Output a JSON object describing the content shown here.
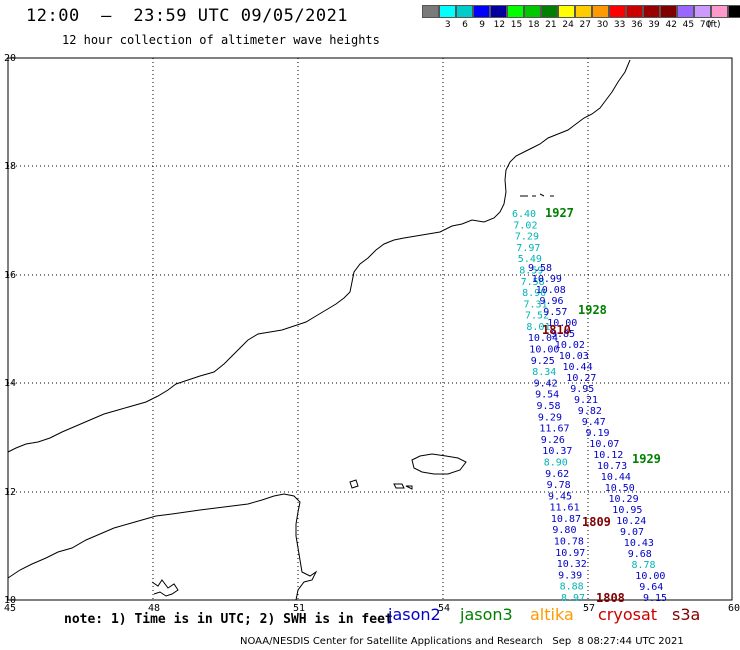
{
  "header": {
    "title": "12:00  –  23:59 UTC 09/05/2021",
    "subtitle": "12 hour collection of altimeter wave heights"
  },
  "color_scale": {
    "colors": [
      "#7a7a7a",
      "#00ffff",
      "#00cccc",
      "#0000ff",
      "#0000a0",
      "#00ff00",
      "#00c800",
      "#008000",
      "#ffff00",
      "#ffcc00",
      "#ff9900",
      "#ff0000",
      "#cc0000",
      "#990000",
      "#800000",
      "#9966ff",
      "#cc99ff",
      "#ff99cc",
      "#000000"
    ],
    "labels": [
      "3",
      "6",
      "9",
      "12",
      "15",
      "18",
      "21",
      "24",
      "27",
      "30",
      "33",
      "36",
      "39",
      "42",
      "45",
      "70"
    ],
    "unit": "(ft)"
  },
  "axes": {
    "x_ticks": [
      "45",
      "48",
      "51",
      "54",
      "57",
      "60"
    ],
    "y_ticks": [
      "20",
      "18",
      "16",
      "14",
      "12",
      "10"
    ]
  },
  "passes": [
    {
      "label": "1927",
      "color": "#008000"
    },
    {
      "label": "1928",
      "color": "#008000"
    },
    {
      "label": "1810",
      "color": "#800000"
    },
    {
      "label": "1929",
      "color": "#008000"
    },
    {
      "label": "1809",
      "color": "#800000"
    },
    {
      "label": "1808",
      "color": "#800000"
    }
  ],
  "track_a": [
    {
      "v": "6.40",
      "c": "#00b4b4"
    },
    {
      "v": "7.02",
      "c": "#00b4b4"
    },
    {
      "v": "7.29",
      "c": "#00b4b4"
    },
    {
      "v": "7.97",
      "c": "#00b4b4"
    },
    {
      "v": "5.49",
      "c": "#00b4b4"
    },
    {
      "v": "8.59",
      "c": "#00b4b4"
    },
    {
      "v": "7.58",
      "c": "#00b4b4"
    },
    {
      "v": "8.90",
      "c": "#00b4b4"
    },
    {
      "v": "7.31",
      "c": "#00b4b4"
    },
    {
      "v": "7.52",
      "c": "#00b4b4"
    },
    {
      "v": "8.01",
      "c": "#00b4b4"
    },
    {
      "v": "10.04",
      "c": "#0000c8"
    },
    {
      "v": "10.00",
      "c": "#0000c8"
    },
    {
      "v": "9.25",
      "c": "#0000c8"
    },
    {
      "v": "8.34",
      "c": "#00b4b4"
    },
    {
      "v": "9.42",
      "c": "#0000c8"
    },
    {
      "v": "9.54",
      "c": "#0000c8"
    },
    {
      "v": "9.58",
      "c": "#0000c8"
    },
    {
      "v": "9.29",
      "c": "#0000c8"
    },
    {
      "v": "11.67",
      "c": "#0000c8"
    },
    {
      "v": "9.26",
      "c": "#0000c8"
    },
    {
      "v": "10.37",
      "c": "#0000c8"
    },
    {
      "v": "8.90",
      "c": "#00b4b4"
    },
    {
      "v": "9.62",
      "c": "#0000c8"
    },
    {
      "v": "9.78",
      "c": "#0000c8"
    },
    {
      "v": "9.45",
      "c": "#0000c8"
    },
    {
      "v": "11.61",
      "c": "#0000c8"
    },
    {
      "v": "10.87",
      "c": "#0000c8"
    },
    {
      "v": "9.80",
      "c": "#0000c8"
    },
    {
      "v": "10.78",
      "c": "#0000c8"
    },
    {
      "v": "10.97",
      "c": "#0000c8"
    },
    {
      "v": "10.32",
      "c": "#0000c8"
    },
    {
      "v": "9.39",
      "c": "#0000c8"
    },
    {
      "v": "8.88",
      "c": "#00b4b4"
    },
    {
      "v": "8.97",
      "c": "#00b4b4"
    }
  ],
  "track_b": [
    {
      "v": "9.58",
      "c": "#0000c8"
    },
    {
      "v": "10.99",
      "c": "#0000c8"
    },
    {
      "v": "10.08",
      "c": "#0000c8"
    },
    {
      "v": "9.96",
      "c": "#0000c8"
    },
    {
      "v": "9.57",
      "c": "#0000c8"
    },
    {
      "v": "10.00",
      "c": "#0000c8"
    },
    {
      "v": "9.85",
      "c": "#0000c8"
    },
    {
      "v": "10.02",
      "c": "#0000c8"
    },
    {
      "v": "10.03",
      "c": "#0000c8"
    },
    {
      "v": "10.44",
      "c": "#0000c8"
    },
    {
      "v": "10.27",
      "c": "#0000c8"
    },
    {
      "v": "9.95",
      "c": "#0000c8"
    },
    {
      "v": "9.21",
      "c": "#0000c8"
    },
    {
      "v": "9.82",
      "c": "#0000c8"
    },
    {
      "v": "9.47",
      "c": "#0000c8"
    },
    {
      "v": "9.19",
      "c": "#0000c8"
    },
    {
      "v": "10.07",
      "c": "#0000c8"
    },
    {
      "v": "10.12",
      "c": "#0000c8"
    },
    {
      "v": "10.73",
      "c": "#0000c8"
    },
    {
      "v": "10.44",
      "c": "#0000c8"
    },
    {
      "v": "10.50",
      "c": "#0000c8"
    },
    {
      "v": "10.29",
      "c": "#0000c8"
    },
    {
      "v": "10.95",
      "c": "#0000c8"
    },
    {
      "v": "10.24",
      "c": "#0000c8"
    },
    {
      "v": "9.07",
      "c": "#0000c8"
    },
    {
      "v": "10.43",
      "c": "#0000c8"
    },
    {
      "v": "9.68",
      "c": "#0000c8"
    },
    {
      "v": "8.78",
      "c": "#00b4b4"
    },
    {
      "v": "10.00",
      "c": "#0000c8"
    },
    {
      "v": "9.64",
      "c": "#0000c8"
    },
    {
      "v": "9.15",
      "c": "#0000c8"
    }
  ],
  "footer": {
    "note": "note: 1) Time is in UTC; 2) SWH is in feet",
    "sat_jason2": "jason2",
    "sat_jason3": "jason3",
    "sat_altika": "altika",
    "sat_cryosat": "cryosat",
    "sat_s3a": "s3a",
    "credit": "NOAA/NESDIS Center for Satellite Applications and Research   Sep  8 08:27:44 UTC 2021"
  }
}
